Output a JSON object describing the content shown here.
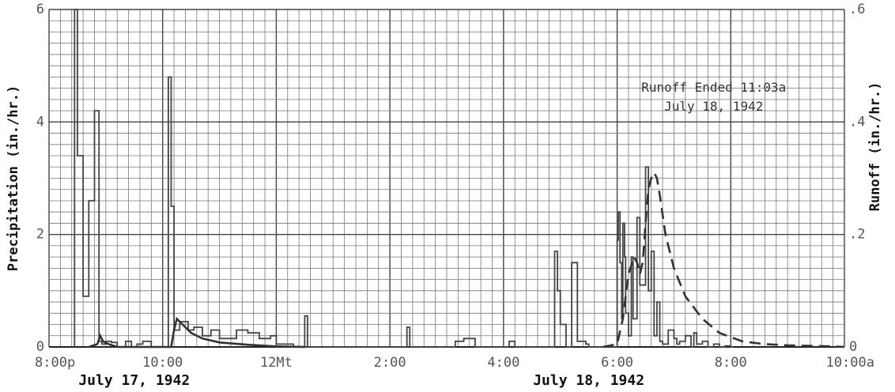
{
  "chart_data": {
    "type": "line",
    "title": "",
    "x_tick_labels": [
      "8:00p",
      "10:00",
      "12Mt",
      "2:00",
      "4:00",
      "6:00",
      "8:00",
      "10:00a"
    ],
    "x_tick_hours": [
      20,
      22,
      24,
      26,
      28,
      30,
      32,
      34
    ],
    "date_labels": [
      {
        "text": "July 17, 1942",
        "hour": 21.5
      },
      {
        "text": "July 18, 1942",
        "hour": 29.5
      }
    ],
    "left_axis": {
      "label": "Precipitation (in./hr.)",
      "range": [
        0,
        6
      ],
      "ticks": [
        {
          "v": 0,
          "t": "0"
        },
        {
          "v": 2,
          "t": "2"
        },
        {
          "v": 4,
          "t": "4"
        },
        {
          "v": 6,
          "t": "6"
        }
      ]
    },
    "right_axis": {
      "label": "Runoff (in./hr.)",
      "range": [
        0,
        0.6
      ],
      "ticks": [
        {
          "v": 0,
          "t": "0"
        },
        {
          "v": 0.2,
          "t": ".2"
        },
        {
          "v": 0.4,
          "t": ".4"
        },
        {
          "v": 0.6,
          "t": ".6"
        }
      ]
    },
    "x_range": [
      20,
      34
    ],
    "annotation": {
      "lines": [
        "Runoff Ended 11:03a",
        "July 18, 1942"
      ]
    },
    "series": [
      {
        "style": "step",
        "axis": "left",
        "x": [
          20.45,
          20.5,
          20.6,
          20.7,
          20.8,
          20.88,
          20.93,
          21.0,
          21.1,
          21.2,
          21.35,
          21.45,
          21.55,
          21.65,
          21.8,
          22.0,
          22.1,
          22.15,
          22.2,
          22.3,
          22.45,
          22.55,
          22.7,
          22.85,
          23.0,
          23.3,
          23.5,
          23.7,
          23.9,
          24.0,
          24.3,
          24.5,
          24.55,
          24.6,
          26.3,
          26.35,
          26.4,
          27.15,
          27.3,
          27.5,
          27.9,
          28.1,
          28.2,
          28.9,
          28.95,
          29.0,
          29.1,
          29.2,
          29.3,
          29.45,
          29.5,
          29.55,
          29.9,
          30.0,
          30.02,
          30.05,
          30.08,
          30.1,
          30.13,
          30.15,
          30.2,
          30.25,
          30.28,
          30.35,
          30.4,
          30.5,
          30.55,
          30.6,
          30.65,
          30.7,
          30.75,
          30.8,
          30.9,
          31.0,
          31.05,
          31.1,
          31.2,
          31.3,
          31.35,
          31.4,
          31.5,
          31.6,
          31.7,
          31.8,
          31.9,
          32.0
        ],
        "y": [
          6.0,
          3.4,
          0.9,
          2.6,
          4.2,
          0.1,
          0.05,
          0.1,
          0.08,
          0.0,
          0.1,
          0.0,
          0.05,
          0.1,
          0.0,
          0.0,
          4.8,
          2.5,
          0.3,
          0.45,
          0.3,
          0.35,
          0.2,
          0.3,
          0.15,
          0.3,
          0.25,
          0.15,
          0.2,
          0.05,
          0.0,
          0.55,
          0.0,
          0.0,
          0.35,
          0.0,
          0.0,
          0.1,
          0.15,
          0.0,
          0.0,
          0.1,
          0.0,
          1.7,
          1.0,
          0.4,
          0.0,
          1.5,
          0.1,
          0.05,
          0.0,
          0.0,
          0.0,
          1.9,
          2.4,
          1.5,
          0.5,
          2.2,
          1.6,
          0.6,
          0.2,
          1.6,
          0.5,
          2.3,
          1.1,
          3.2,
          1.0,
          1.7,
          0.2,
          0.8,
          0.1,
          0.05,
          0.3,
          0.15,
          0.05,
          0.1,
          0.2,
          0.0,
          0.25,
          0.05,
          0.1,
          0.0,
          0.05,
          0.0,
          0.02,
          0.0
        ]
      },
      {
        "style": "solid",
        "axis": "right",
        "x": [
          20.7,
          20.85,
          20.9,
          20.95,
          21.05,
          21.2,
          21.5,
          21.8,
          22.0,
          22.15,
          22.2,
          22.25,
          22.35,
          22.5,
          22.7,
          23.0,
          23.5,
          24.0,
          24.5
        ],
        "y": [
          0.0,
          0.005,
          0.02,
          0.01,
          0.005,
          0.0,
          0.0,
          0.0,
          0.0,
          0.0,
          0.03,
          0.05,
          0.04,
          0.025,
          0.015,
          0.008,
          0.004,
          0.001,
          0.0
        ]
      },
      {
        "style": "dashed",
        "axis": "right",
        "x": [
          29.75,
          30.0,
          30.1,
          30.2,
          30.3,
          30.35,
          30.4,
          30.45,
          30.5,
          30.55,
          30.6,
          30.65,
          30.7,
          30.75,
          30.85,
          31.0,
          31.2,
          31.5,
          31.8,
          32.2,
          32.6,
          33.0,
          33.4,
          33.8,
          34.0
        ],
        "y": [
          0.0,
          0.005,
          0.05,
          0.13,
          0.16,
          0.15,
          0.13,
          0.15,
          0.22,
          0.28,
          0.3,
          0.31,
          0.3,
          0.27,
          0.2,
          0.14,
          0.09,
          0.05,
          0.025,
          0.01,
          0.005,
          0.003,
          0.002,
          0.001,
          0.0
        ]
      }
    ],
    "grid": true
  }
}
